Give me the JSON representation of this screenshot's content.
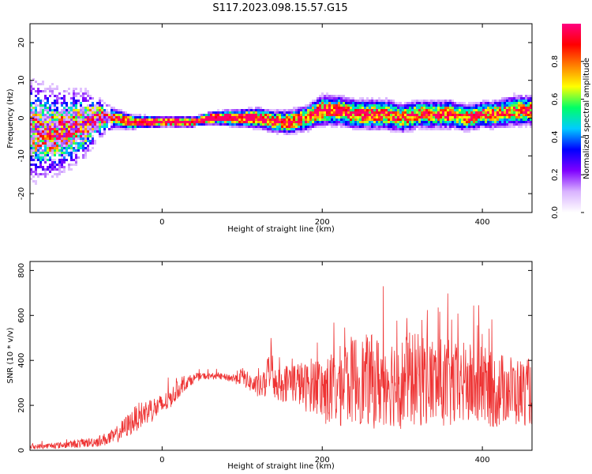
{
  "title": "S117.2023.098.15.57.G15",
  "chart_data": [
    {
      "type": "heatmap",
      "xlabel": "Height of straight line (km)",
      "ylabel": "Frequency (Hz)",
      "xlim": [
        -165,
        462
      ],
      "ylim": [
        -25,
        25
      ],
      "x_ticks": [
        0,
        200,
        400
      ],
      "y_ticks": [
        -20,
        -10,
        0,
        10,
        20
      ],
      "grid": false,
      "colorbar": {
        "label": "Normalized spectral amplitude",
        "range": [
          0,
          1
        ],
        "ticks": [
          "0.0",
          "0.2",
          "0.4",
          "0.6",
          "0.8"
        ],
        "colors": [
          "#ffffff",
          "#d9b3ff",
          "#7f00ff",
          "#0000ff",
          "#00ccff",
          "#00ff66",
          "#ffff00",
          "#ff8000",
          "#ff0000",
          "#ff0080"
        ]
      },
      "ridge": {
        "x": [
          -165,
          -140,
          -120,
          -100,
          -80,
          -60,
          -40,
          -20,
          0,
          20,
          40,
          60,
          80,
          100,
          120,
          140,
          160,
          180,
          200,
          220,
          240,
          260,
          280,
          300,
          320,
          340,
          360,
          380,
          400,
          420,
          440,
          462
        ],
        "freq": [
          -3,
          -4,
          -3,
          -2,
          0,
          0,
          -1,
          -1,
          -1,
          -1,
          -1,
          0,
          0,
          0,
          0,
          -1,
          -1,
          0,
          2,
          2,
          1,
          1,
          1,
          0,
          1,
          1,
          1,
          0,
          1,
          1,
          2,
          2
        ],
        "width": [
          10,
          9,
          8,
          7,
          4,
          2,
          1.5,
          1.2,
          1,
          1,
          1,
          1.2,
          1.5,
          1.8,
          2,
          2.2,
          2.4,
          2.5,
          3,
          3,
          3,
          3,
          3,
          2.8,
          2.8,
          2.8,
          2.8,
          2.6,
          2.6,
          2.8,
          3,
          3
        ],
        "amplitude": [
          0.3,
          0.35,
          0.35,
          0.4,
          0.45,
          0.5,
          0.65,
          0.75,
          0.8,
          0.9,
          0.95,
          0.85,
          0.8,
          0.7,
          0.65,
          0.6,
          0.55,
          0.5,
          0.55,
          0.5,
          0.5,
          0.5,
          0.45,
          0.5,
          0.5,
          0.45,
          0.5,
          0.45,
          0.5,
          0.45,
          0.45,
          0.45
        ]
      }
    },
    {
      "type": "line",
      "xlabel": "Height of straight line (km)",
      "ylabel": "SNR (10 * v/v)",
      "xlim": [
        -165,
        462
      ],
      "ylim": [
        0,
        840
      ],
      "x_ticks": [
        0,
        200,
        400
      ],
      "y_ticks": [
        0,
        200,
        400,
        600,
        800
      ],
      "grid": false,
      "color": "#ee3333",
      "series": [
        {
          "x": [
            -165,
            -150,
            -130,
            -110,
            -100,
            -90,
            -80,
            -70,
            -60,
            -50,
            -40,
            -30,
            -20,
            -10,
            0,
            10,
            20,
            30,
            40,
            50,
            60,
            70,
            80,
            90,
            100,
            110,
            120,
            130,
            135,
            140,
            150,
            160,
            170,
            180,
            190,
            200,
            210,
            220,
            230,
            240,
            250,
            260,
            270,
            280,
            290,
            300,
            310,
            320,
            330,
            340,
            350,
            360,
            370,
            380,
            390,
            400,
            410,
            420,
            430,
            440,
            450,
            462
          ],
          "mean": [
            15,
            18,
            22,
            28,
            32,
            35,
            40,
            50,
            60,
            90,
            120,
            150,
            170,
            185,
            200,
            230,
            270,
            300,
            320,
            330,
            330,
            330,
            325,
            320,
            330,
            300,
            280,
            290,
            420,
            300,
            290,
            310,
            300,
            280,
            300,
            270,
            260,
            280,
            300,
            320,
            310,
            310,
            300,
            320,
            310,
            300,
            320,
            310,
            320,
            300,
            300,
            290,
            280,
            300,
            280,
            290,
            270,
            260,
            280,
            260,
            260,
            260
          ],
          "amp": [
            10,
            12,
            14,
            18,
            20,
            22,
            25,
            30,
            35,
            45,
            55,
            60,
            60,
            55,
            50,
            45,
            40,
            30,
            20,
            15,
            15,
            15,
            15,
            25,
            40,
            40,
            50,
            60,
            140,
            70,
            80,
            90,
            100,
            110,
            130,
            150,
            170,
            180,
            190,
            200,
            200,
            210,
            210,
            210,
            210,
            210,
            210,
            210,
            210,
            200,
            200,
            200,
            190,
            190,
            180,
            180,
            170,
            170,
            160,
            160,
            150,
            150
          ]
        }
      ]
    }
  ]
}
